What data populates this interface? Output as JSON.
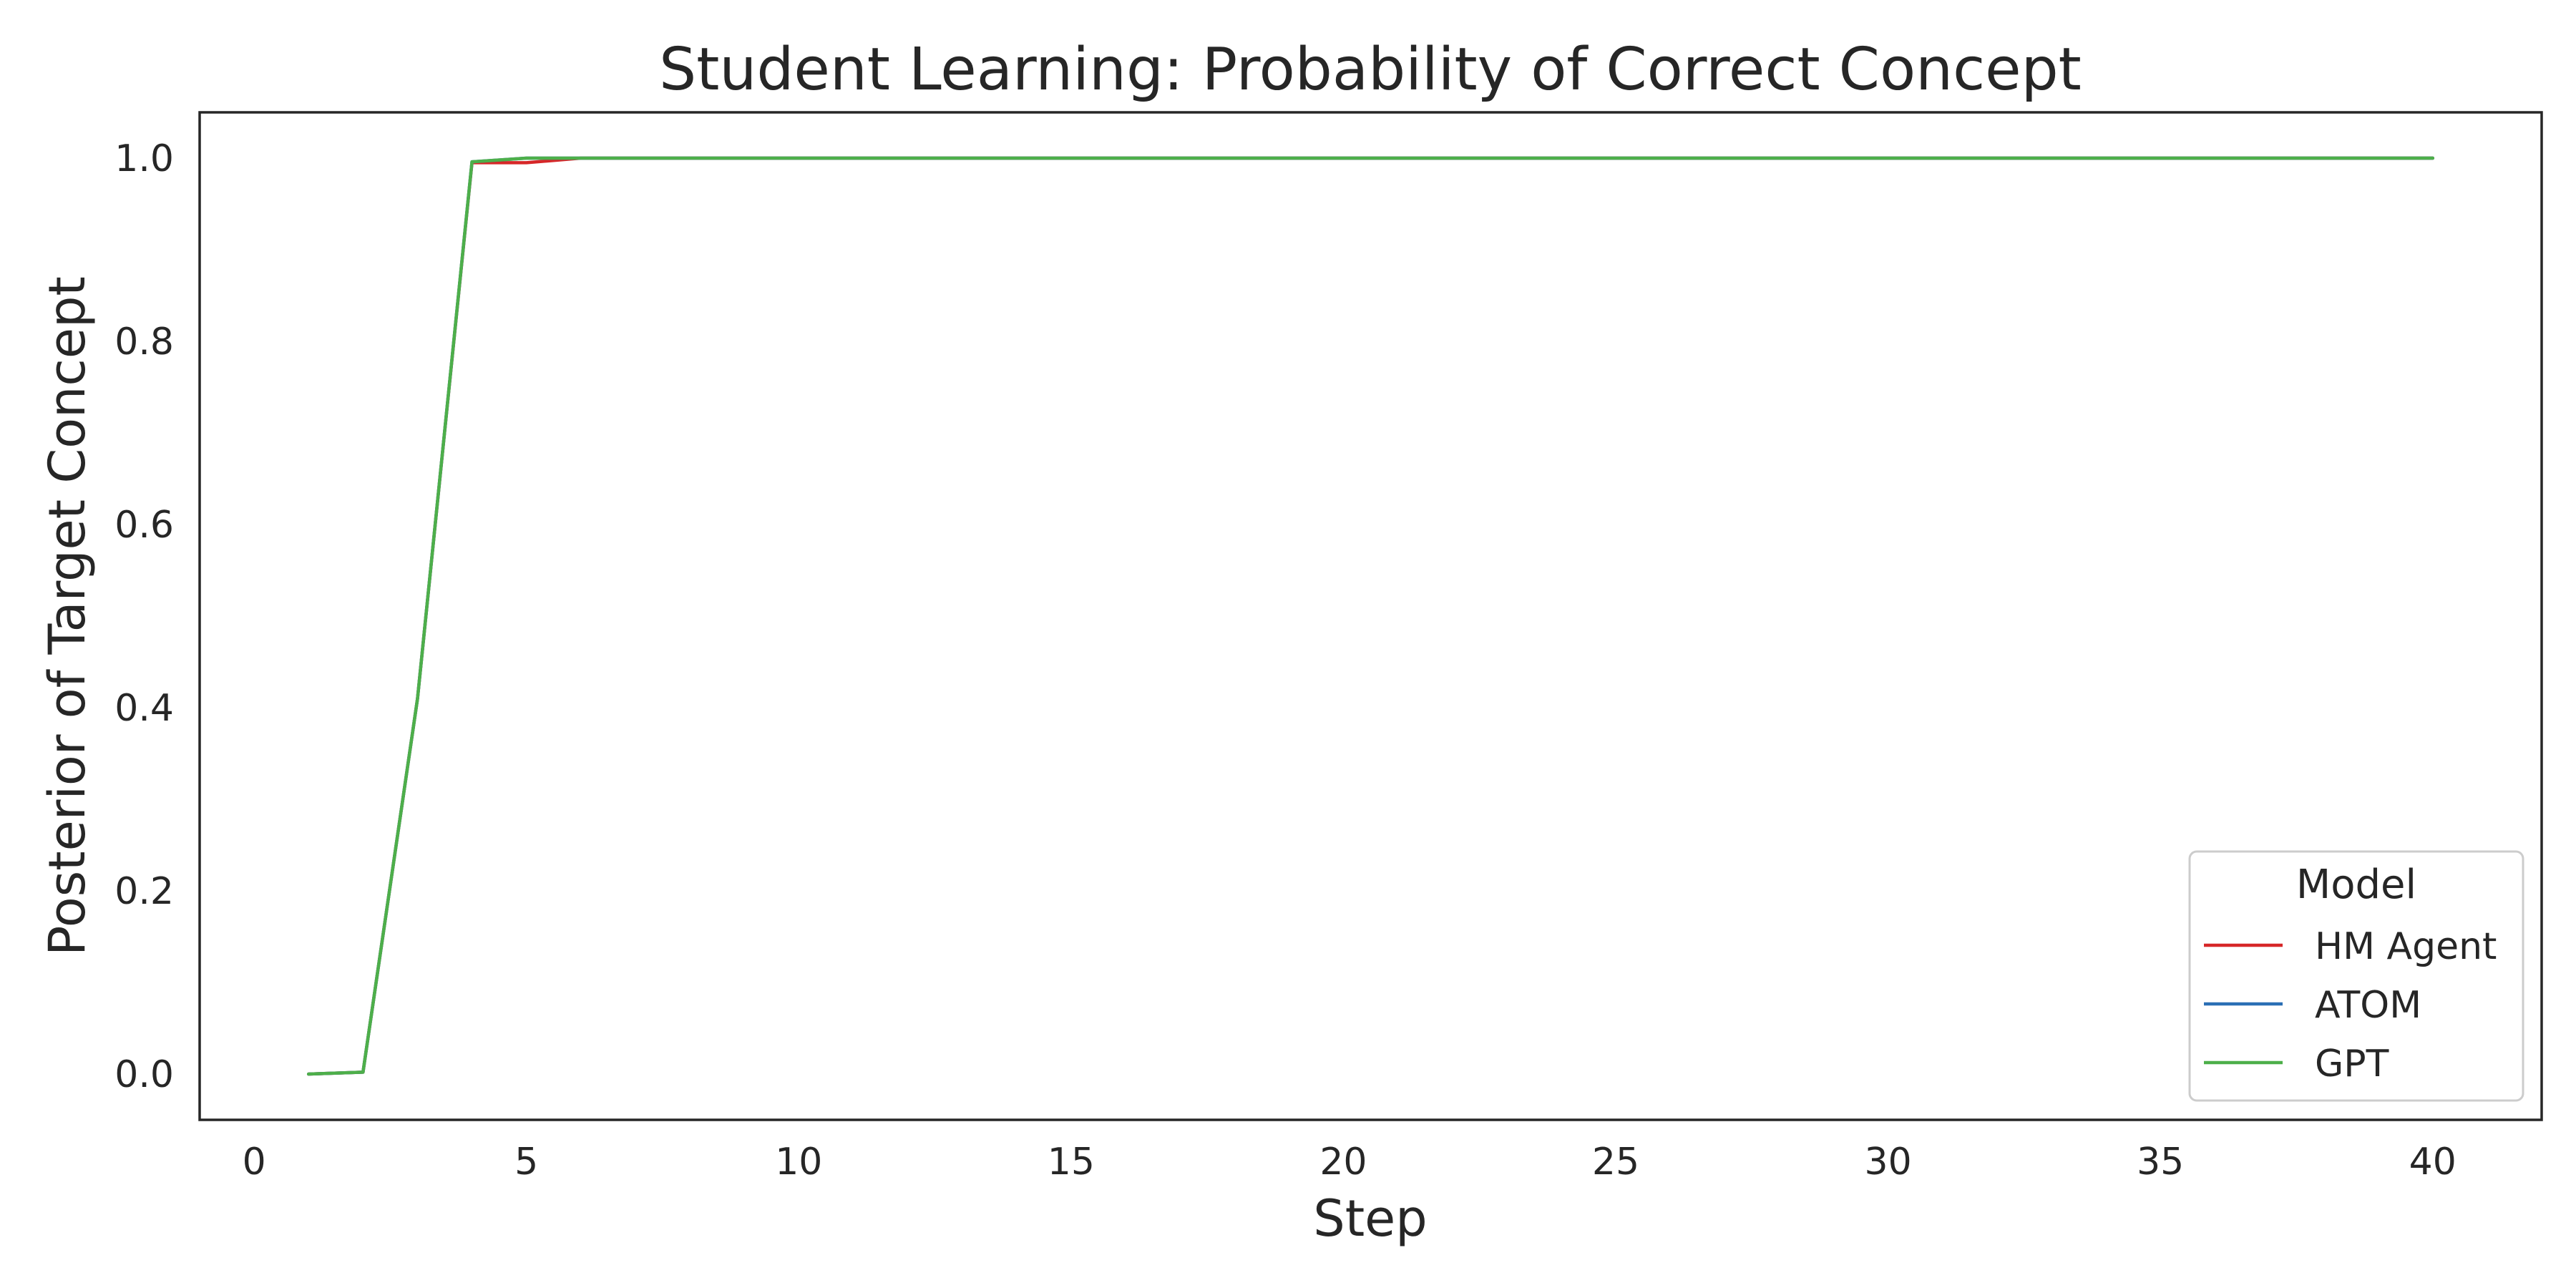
{
  "chart_data": {
    "type": "line",
    "title": "Student Learning: Probability of Correct Concept",
    "xlabel": "Step",
    "ylabel": "Posterior of Target Concept",
    "xlim": [
      -1,
      42
    ],
    "ylim": [
      -0.05,
      1.05
    ],
    "xticks": [
      0,
      5,
      10,
      15,
      20,
      25,
      30,
      35,
      40
    ],
    "xtick_labels": [
      "0",
      "5",
      "10",
      "15",
      "20",
      "25",
      "30",
      "35",
      "40"
    ],
    "yticks": [
      0.0,
      0.2,
      0.4,
      0.6,
      0.8,
      1.0
    ],
    "ytick_labels": [
      "0.0",
      "0.2",
      "0.4",
      "0.6",
      "0.8",
      "1.0"
    ],
    "grid": false,
    "legend": {
      "title": "Model",
      "placement": "lower-right"
    },
    "series": [
      {
        "name": "HM Agent",
        "color": "#d62728",
        "x": [
          1,
          2,
          3,
          4,
          5,
          6,
          7,
          8,
          9,
          10,
          11,
          12,
          13,
          14,
          15,
          16,
          17,
          18,
          19,
          20,
          21,
          22,
          23,
          24,
          25,
          26,
          27,
          28,
          29,
          30,
          31,
          32,
          33,
          34,
          35,
          36,
          37,
          38,
          39,
          40
        ],
        "y": [
          0.0,
          0.002,
          0.41,
          0.995,
          0.995,
          1.0,
          1.0,
          1.0,
          1.0,
          1.0,
          1.0,
          1.0,
          1.0,
          1.0,
          1.0,
          1.0,
          1.0,
          1.0,
          1.0,
          1.0,
          1.0,
          1.0,
          1.0,
          1.0,
          1.0,
          1.0,
          1.0,
          1.0,
          1.0,
          1.0,
          1.0,
          1.0,
          1.0,
          1.0,
          1.0,
          1.0,
          1.0,
          1.0,
          1.0,
          1.0
        ]
      },
      {
        "name": "ATOM",
        "color": "#2a6fb5",
        "x": [
          1,
          2,
          3,
          4,
          5,
          6,
          7,
          8,
          9,
          10,
          11,
          12,
          13,
          14,
          15,
          16,
          17,
          18,
          19,
          20,
          21,
          22,
          23,
          24,
          25,
          26,
          27,
          28,
          29,
          30,
          31,
          32,
          33,
          34,
          35,
          36,
          37,
          38,
          39,
          40
        ],
        "y": [
          0.0,
          0.002,
          0.41,
          0.996,
          1.0,
          1.0,
          1.0,
          1.0,
          1.0,
          1.0,
          1.0,
          1.0,
          1.0,
          1.0,
          1.0,
          1.0,
          1.0,
          1.0,
          1.0,
          1.0,
          1.0,
          1.0,
          1.0,
          1.0,
          1.0,
          1.0,
          1.0,
          1.0,
          1.0,
          1.0,
          1.0,
          1.0,
          1.0,
          1.0,
          1.0,
          1.0,
          1.0,
          1.0,
          1.0,
          1.0
        ]
      },
      {
        "name": "GPT",
        "color": "#4daf4a",
        "x": [
          1,
          2,
          3,
          4,
          5,
          6,
          7,
          8,
          9,
          10,
          11,
          12,
          13,
          14,
          15,
          16,
          17,
          18,
          19,
          20,
          21,
          22,
          23,
          24,
          25,
          26,
          27,
          28,
          29,
          30,
          31,
          32,
          33,
          34,
          35,
          36,
          37,
          38,
          39,
          40
        ],
        "y": [
          0.0,
          0.002,
          0.41,
          0.996,
          1.0,
          1.0,
          1.0,
          1.0,
          1.0,
          1.0,
          1.0,
          1.0,
          1.0,
          1.0,
          1.0,
          1.0,
          1.0,
          1.0,
          1.0,
          1.0,
          1.0,
          1.0,
          1.0,
          1.0,
          1.0,
          1.0,
          1.0,
          1.0,
          1.0,
          1.0,
          1.0,
          1.0,
          1.0,
          1.0,
          1.0,
          1.0,
          1.0,
          1.0,
          1.0,
          1.0
        ]
      }
    ]
  }
}
